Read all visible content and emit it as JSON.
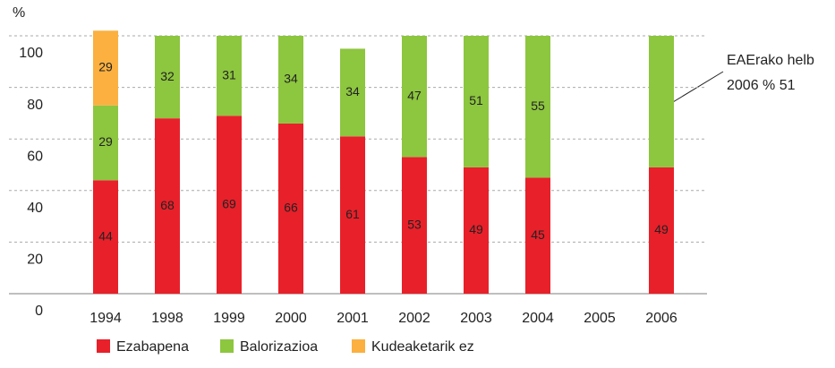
{
  "chart_data": {
    "type": "stacked_bar",
    "y_axis_label": "%",
    "categories": [
      "1994",
      "1998",
      "1999",
      "2000",
      "2001",
      "2002",
      "2003",
      "2004",
      "2005",
      "2006"
    ],
    "series": [
      {
        "name": "Ezabapena",
        "color": "#e8202a",
        "values": [
          44,
          68,
          69,
          66,
          61,
          53,
          49,
          45,
          null,
          49
        ]
      },
      {
        "name": "Balorizazioa",
        "color": "#8dc63f",
        "values": [
          29,
          32,
          31,
          34,
          34,
          47,
          51,
          55,
          null,
          51
        ],
        "value_labels": [
          "29",
          "32",
          "31",
          "34",
          "34",
          "47",
          "51",
          "55",
          null,
          null
        ]
      },
      {
        "name": "Kudeaketarik ez",
        "color": "#fbb040",
        "values": [
          29,
          null,
          null,
          null,
          null,
          null,
          null,
          null,
          null,
          null
        ]
      }
    ],
    "ylim": [
      0,
      100
    ],
    "yticks": [
      0,
      20,
      40,
      60,
      80,
      100
    ],
    "grid": true,
    "annotation": [
      "EAErako helb",
      "2006 % 51"
    ]
  }
}
